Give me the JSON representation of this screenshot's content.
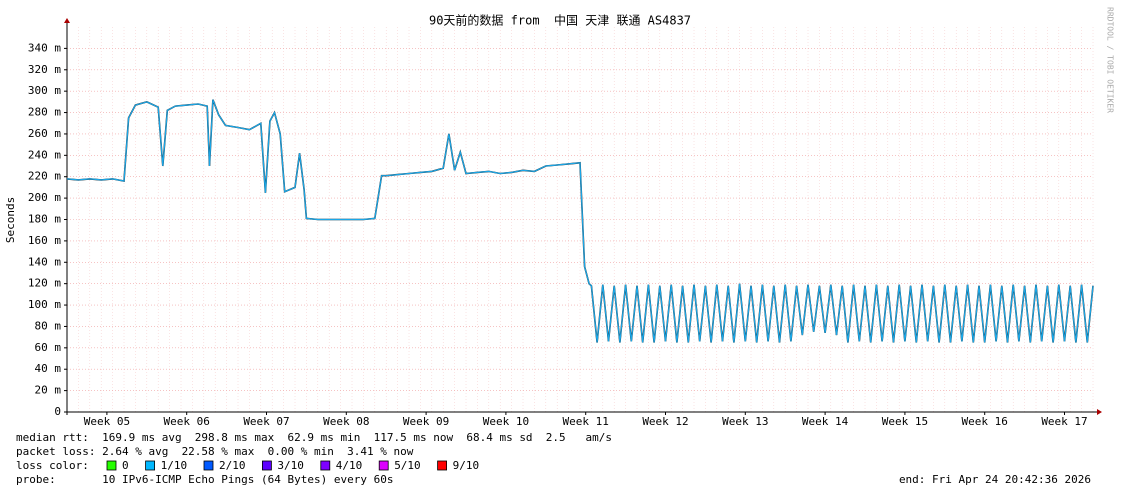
{
  "chart_data": {
    "type": "line",
    "title": "90天前的数据 from  中国 天津 联通 AS4837",
    "y_label": "Seconds",
    "watermark": "RRDTOOL / TOBI OETIKER",
    "xlim": [
      0,
      90
    ],
    "xticks": [
      {
        "value": 3.5,
        "label": "Week 05"
      },
      {
        "value": 10.5,
        "label": "Week 06"
      },
      {
        "value": 17.5,
        "label": "Week 07"
      },
      {
        "value": 24.5,
        "label": "Week 08"
      },
      {
        "value": 31.5,
        "label": "Week 09"
      },
      {
        "value": 38.5,
        "label": "Week 10"
      },
      {
        "value": 45.5,
        "label": "Week 11"
      },
      {
        "value": 52.5,
        "label": "Week 12"
      },
      {
        "value": 59.5,
        "label": "Week 13"
      },
      {
        "value": 66.5,
        "label": "Week 14"
      },
      {
        "value": 73.5,
        "label": "Week 15"
      },
      {
        "value": 80.5,
        "label": "Week 16"
      },
      {
        "value": 87.5,
        "label": "Week 17"
      }
    ],
    "ylim": [
      0,
      360
    ],
    "yticks": [
      0,
      {
        "value": 20,
        "label": "20 m"
      },
      {
        "value": 40,
        "label": "40 m"
      },
      {
        "value": 60,
        "label": "60 m"
      },
      {
        "value": 80,
        "label": "80 m"
      },
      {
        "value": 100,
        "label": "100 m"
      },
      {
        "value": 120,
        "label": "120 m"
      },
      {
        "value": 140,
        "label": "140 m"
      },
      {
        "value": 160,
        "label": "160 m"
      },
      {
        "value": 180,
        "label": "180 m"
      },
      {
        "value": 200,
        "label": "200 m"
      },
      {
        "value": 220,
        "label": "220 m"
      },
      {
        "value": 240,
        "label": "240 m"
      },
      {
        "value": 260,
        "label": "260 m"
      },
      {
        "value": 280,
        "label": "280 m"
      },
      {
        "value": 300,
        "label": "300 m"
      },
      {
        "value": 320,
        "label": "320 m"
      },
      {
        "value": 340,
        "label": "340 m"
      }
    ],
    "grid": true,
    "x": [
      0,
      1,
      2,
      3,
      4,
      5,
      5.4,
      6,
      7,
      8,
      8.4,
      8.8,
      9.5,
      10.5,
      11.5,
      12.3,
      12.5,
      12.8,
      13.3,
      13.9,
      15,
      16,
      17,
      17.4,
      17.8,
      18.2,
      18.7,
      19.1,
      20,
      20.4,
      20.8,
      21,
      22,
      23,
      24,
      25,
      26,
      27,
      27.6,
      28,
      29,
      30,
      31,
      32,
      33,
      33.5,
      34,
      34.5,
      35,
      36,
      37,
      38,
      39,
      40,
      41,
      42,
      43,
      44,
      45,
      45.4,
      45.8,
      46,
      46.5,
      47,
      47.5,
      48,
      48.5,
      49,
      49.5,
      50,
      50.5,
      51,
      51.5,
      52,
      52.5,
      53,
      53.5,
      54,
      54.5,
      55,
      55.5,
      56,
      56.5,
      57,
      57.5,
      58,
      58.5,
      59,
      59.5,
      60,
      60.5,
      61,
      61.5,
      62,
      62.5,
      63,
      63.5,
      64,
      64.5,
      65,
      65.5,
      66,
      66.5,
      67,
      67.5,
      68,
      68.5,
      69,
      69.5,
      70,
      70.5,
      71,
      71.5,
      72,
      72.5,
      73,
      73.5,
      74,
      74.5,
      75,
      75.5,
      76,
      76.5,
      77,
      77.5,
      78,
      78.5,
      79,
      79.5,
      80,
      80.5,
      81,
      81.5,
      82,
      82.5,
      83,
      83.5,
      84,
      84.5,
      85,
      85.5,
      86,
      86.5,
      87,
      87.5,
      88,
      88.5,
      89,
      89.5,
      90
    ],
    "series": [
      {
        "name": "median rtt",
        "color": "#1aa7e8",
        "values": [
          218,
          217,
          218,
          217,
          218,
          216,
          275,
          287,
          290,
          285,
          230,
          282,
          286,
          287,
          288,
          286,
          230,
          292,
          278,
          268,
          266,
          264,
          270,
          205,
          272,
          280,
          260,
          206,
          210,
          242,
          208,
          181,
          180,
          180,
          180,
          180,
          180,
          181,
          221,
          221,
          222,
          223,
          224,
          225,
          228,
          260,
          226,
          243,
          223,
          224,
          225,
          223,
          224,
          226,
          225,
          230,
          231,
          232,
          233,
          136,
          120,
          118,
          65,
          119,
          66,
          118,
          65,
          119,
          66,
          118,
          65,
          119,
          65,
          118,
          66,
          119,
          65,
          118,
          65,
          119,
          66,
          118,
          65,
          119,
          66,
          118,
          65,
          120,
          66,
          118,
          65,
          119,
          66,
          118,
          65,
          119,
          66,
          118,
          72,
          119,
          75,
          118,
          74,
          119,
          72,
          118,
          65,
          119,
          66,
          118,
          65,
          119,
          66,
          118,
          65,
          119,
          66,
          118,
          65,
          119,
          66,
          118,
          65,
          119,
          65,
          118,
          66,
          119,
          65,
          118,
          65,
          119,
          66,
          118,
          65,
          119,
          66,
          118,
          65,
          119,
          66,
          118,
          65,
          119,
          66,
          118,
          65,
          119,
          65,
          118
        ]
      }
    ],
    "stats": [
      "median rtt:  169.9 ms avg  298.8 ms max  62.9 ms min  117.5 ms now  68.4 ms sd  2.5   am/s",
      "packet loss: 2.64 % avg  22.58 % max  0.00 % min  3.41 % now"
    ],
    "loss_title": "loss color:",
    "loss_colors": [
      {
        "label": "0",
        "color": "#26ff00"
      },
      {
        "label": "1/10",
        "color": "#00b8ff"
      },
      {
        "label": "2/10",
        "color": "#0059ff"
      },
      {
        "label": "3/10",
        "color": "#5e00ff"
      },
      {
        "label": "4/10",
        "color": "#7e00ff"
      },
      {
        "label": "5/10",
        "color": "#dd00ff"
      },
      {
        "label": "9/10",
        "color": "#ff0000"
      }
    ],
    "probe": "probe:       10 IPv6-ICMP Echo Pings (64 Bytes) every 60s",
    "end": "end: Fri Apr 24 20:42:36 2026"
  }
}
